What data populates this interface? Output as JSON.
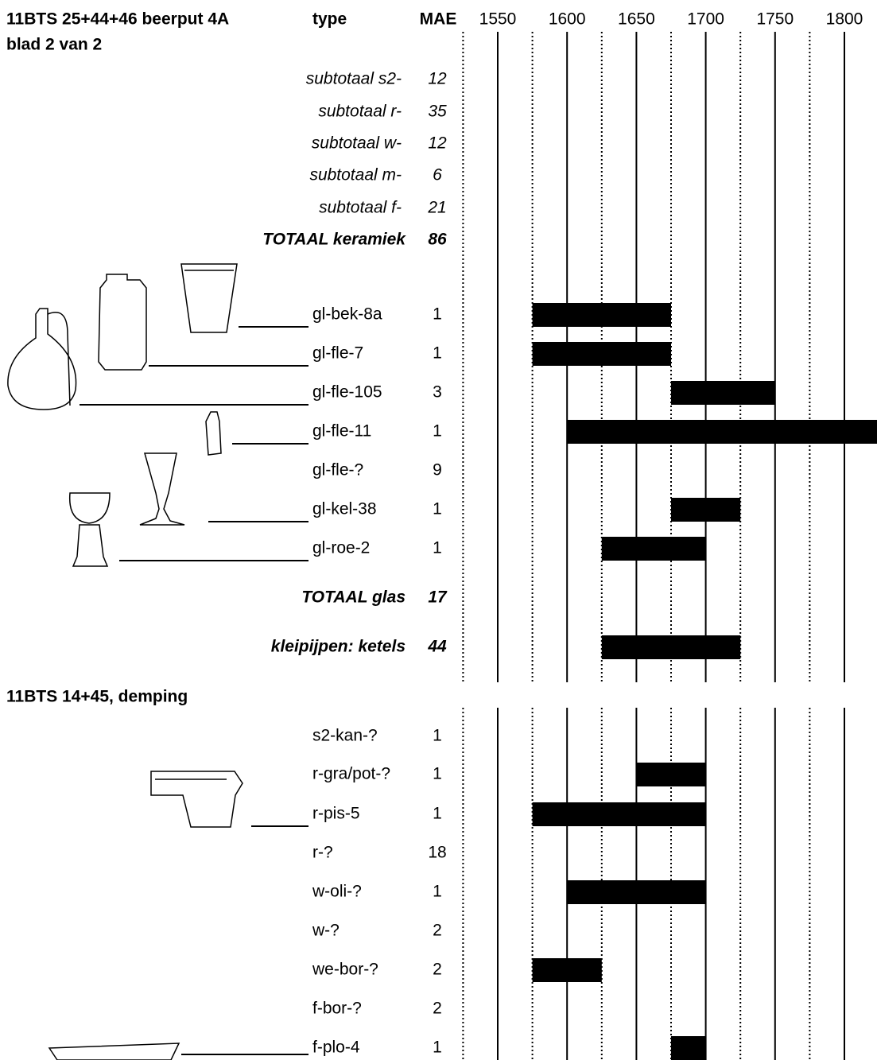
{
  "chart_data": {
    "type": "range",
    "header": {
      "title": "11BTS 25+44+46  beerput 4A",
      "sheet": "blad 2 van 2",
      "type_label": "type",
      "count_label": "MAE"
    },
    "xlim": [
      1525,
      1825
    ],
    "xticks": [
      1550,
      1600,
      1650,
      1700,
      1750,
      1800
    ],
    "xminor": [
      1525,
      1575,
      1625,
      1675,
      1725,
      1775
    ],
    "color": "#000000",
    "sections": [
      {
        "rows": [
          {
            "label": "subtotaal s2-",
            "count": "12",
            "style": "italic"
          },
          {
            "label": "subtotaal r-",
            "count": "35",
            "style": "italic"
          },
          {
            "label": "subtotaal w-",
            "count": "12",
            "style": "italic"
          },
          {
            "label": "subtotaal m-",
            "count": "6",
            "style": "italic"
          },
          {
            "label": "subtotaal f-",
            "count": "21",
            "style": "italic"
          },
          {
            "label": "TOTAAL keramiek",
            "count": "86",
            "style": "bold-italic"
          },
          {
            "label": "gl-bek-8a",
            "count": "1",
            "style": "normal",
            "start": 1575,
            "end": 1675
          },
          {
            "label": "gl-fle-7",
            "count": "1",
            "style": "normal",
            "start": 1575,
            "end": 1675
          },
          {
            "label": "gl-fle-105",
            "count": "3",
            "style": "normal",
            "start": 1675,
            "end": 1750
          },
          {
            "label": "gl-fle-11",
            "count": "1",
            "style": "normal",
            "start": 1600,
            "end": 1825
          },
          {
            "label": "gl-fle-?",
            "count": "9",
            "style": "normal"
          },
          {
            "label": "gl-kel-38",
            "count": "1",
            "style": "normal",
            "start": 1675,
            "end": 1725
          },
          {
            "label": "gl-roe-2",
            "count": "1",
            "style": "normal",
            "start": 1625,
            "end": 1700
          },
          {
            "label": "TOTAAL glas",
            "count": "17",
            "style": "bold-italic"
          },
          {
            "label": "kleipijpen: ketels",
            "count": "44",
            "style": "bold-italic",
            "start": 1625,
            "end": 1725
          }
        ]
      },
      {
        "title": "11BTS 14+45, demping",
        "rows": [
          {
            "label": "s2-kan-?",
            "count": "1",
            "style": "normal"
          },
          {
            "label": "r-gra/pot-?",
            "count": "1",
            "style": "normal",
            "start": 1650,
            "end": 1700
          },
          {
            "label": "r-pis-5",
            "count": "1",
            "style": "normal",
            "start": 1575,
            "end": 1700
          },
          {
            "label": "r-?",
            "count": "18",
            "style": "normal"
          },
          {
            "label": "w-oli-?",
            "count": "1",
            "style": "normal",
            "start": 1600,
            "end": 1700
          },
          {
            "label": "w-?",
            "count": "2",
            "style": "normal"
          },
          {
            "label": "we-bor-?",
            "count": "2",
            "style": "normal",
            "start": 1575,
            "end": 1625
          },
          {
            "label": "f-bor-?",
            "count": "2",
            "style": "normal"
          },
          {
            "label": "f-plo-4",
            "count": "1",
            "style": "normal",
            "start": 1675,
            "end": 1700
          }
        ]
      }
    ]
  }
}
